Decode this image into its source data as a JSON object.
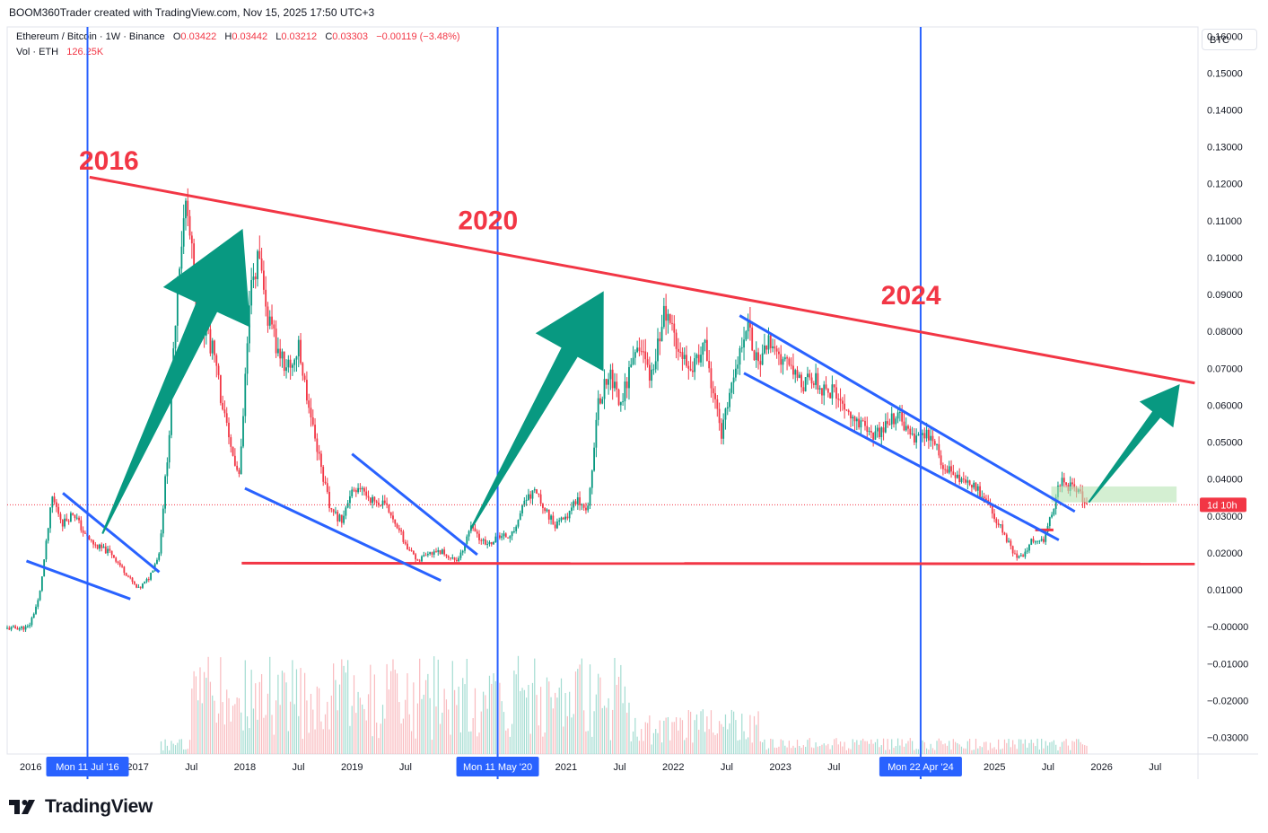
{
  "header": {
    "credit": "BOOM360Trader created with TradingView.com, Nov 15, 2025 17:50 UTC+3"
  },
  "legend": {
    "symbol": "Ethereum / Bitcoin · 1W · Binance",
    "o_label": "O",
    "o_value": "0.03422",
    "h_label": "H",
    "h_value": "0.03442",
    "l_label": "L",
    "l_value": "0.03212",
    "c_label": "C",
    "c_value": "0.03303",
    "change": "−0.00119 (−3.48%)",
    "vol_label": "Vol · ETH",
    "vol_value": "126.25K"
  },
  "currency_button": "BTC",
  "branding": "TradingView",
  "colors": {
    "up": "#089981",
    "down": "#f23645",
    "blue_line": "#2962ff",
    "red_line": "#f23645",
    "arrow": "#089981"
  },
  "chart_data": {
    "type": "candlestick",
    "title": "Ethereum / Bitcoin · 1W · Binance",
    "y_axis": {
      "unit": "BTC",
      "ticks": [
        "0.16000",
        "0.15000",
        "0.14000",
        "0.13000",
        "0.12000",
        "0.11000",
        "0.10000",
        "0.09000",
        "0.08000",
        "0.07000",
        "0.06000",
        "0.05000",
        "0.04000",
        "0.03000",
        "0.02000",
        "0.01000",
        "−0.00000",
        "−0.01000",
        "−0.02000",
        "−0.03000"
      ],
      "range": [
        -0.0345,
        0.1625
      ]
    },
    "x_axis": {
      "ticks": [
        {
          "label": "2016",
          "t": 2016.0
        },
        {
          "label": "2017",
          "t": 2017.0
        },
        {
          "label": "Jul",
          "t": 2017.5
        },
        {
          "label": "2018",
          "t": 2018.0
        },
        {
          "label": "Jul",
          "t": 2018.5
        },
        {
          "label": "2019",
          "t": 2019.0
        },
        {
          "label": "Jul",
          "t": 2019.5
        },
        {
          "label": "2021",
          "t": 2021.0
        },
        {
          "label": "Jul",
          "t": 2021.5
        },
        {
          "label": "2022",
          "t": 2022.0
        },
        {
          "label": "Jul",
          "t": 2022.5
        },
        {
          "label": "2023",
          "t": 2023.0
        },
        {
          "label": "Jul",
          "t": 2023.5
        },
        {
          "label": "2025",
          "t": 2025.0
        },
        {
          "label": "Jul",
          "t": 2025.5
        },
        {
          "label": "2026",
          "t": 2026.0
        },
        {
          "label": "Jul",
          "t": 2026.5
        }
      ],
      "range": [
        2015.78,
        2026.9
      ],
      "highlighted_dates": [
        {
          "label": "Mon 11 Jul '16",
          "t": 2016.53
        },
        {
          "label": "Mon 11 May '20",
          "t": 2020.36
        },
        {
          "label": "Mon 22 Apr '24",
          "t": 2024.31
        }
      ]
    },
    "last_price": {
      "value": 0.03303,
      "countdown": "1d 10h"
    },
    "price_path": [
      [
        2015.78,
        -0.0005
      ],
      [
        2015.98,
        -0.0002
      ],
      [
        2016.08,
        0.008
      ],
      [
        2016.2,
        0.035
      ],
      [
        2016.3,
        0.028
      ],
      [
        2016.4,
        0.031
      ],
      [
        2016.5,
        0.025
      ],
      [
        2016.6,
        0.022
      ],
      [
        2016.75,
        0.02
      ],
      [
        2016.9,
        0.014
      ],
      [
        2017.0,
        0.01
      ],
      [
        2017.1,
        0.013
      ],
      [
        2017.2,
        0.02
      ],
      [
        2017.3,
        0.055
      ],
      [
        2017.37,
        0.095
      ],
      [
        2017.45,
        0.115
      ],
      [
        2017.55,
        0.088
      ],
      [
        2017.7,
        0.075
      ],
      [
        2017.85,
        0.05
      ],
      [
        2017.95,
        0.04
      ],
      [
        2018.05,
        0.09
      ],
      [
        2018.12,
        0.1
      ],
      [
        2018.2,
        0.085
      ],
      [
        2018.3,
        0.075
      ],
      [
        2018.4,
        0.07
      ],
      [
        2018.5,
        0.075
      ],
      [
        2018.6,
        0.06
      ],
      [
        2018.7,
        0.045
      ],
      [
        2018.8,
        0.031
      ],
      [
        2018.9,
        0.029
      ],
      [
        2019.0,
        0.036
      ],
      [
        2019.1,
        0.037
      ],
      [
        2019.2,
        0.034
      ],
      [
        2019.3,
        0.033
      ],
      [
        2019.4,
        0.029
      ],
      [
        2019.5,
        0.022
      ],
      [
        2019.6,
        0.018
      ],
      [
        2019.7,
        0.019
      ],
      [
        2019.8,
        0.021
      ],
      [
        2019.9,
        0.019
      ],
      [
        2020.0,
        0.018
      ],
      [
        2020.1,
        0.027
      ],
      [
        2020.25,
        0.022
      ],
      [
        2020.35,
        0.024
      ],
      [
        2020.5,
        0.025
      ],
      [
        2020.6,
        0.033
      ],
      [
        2020.7,
        0.037
      ],
      [
        2020.8,
        0.032
      ],
      [
        2020.9,
        0.027
      ],
      [
        2021.0,
        0.03
      ],
      [
        2021.1,
        0.035
      ],
      [
        2021.2,
        0.032
      ],
      [
        2021.3,
        0.06
      ],
      [
        2021.4,
        0.07
      ],
      [
        2021.5,
        0.06
      ],
      [
        2021.6,
        0.07
      ],
      [
        2021.7,
        0.075
      ],
      [
        2021.8,
        0.067
      ],
      [
        2021.9,
        0.085
      ],
      [
        2022.0,
        0.08
      ],
      [
        2022.1,
        0.074
      ],
      [
        2022.2,
        0.071
      ],
      [
        2022.3,
        0.075
      ],
      [
        2022.4,
        0.06
      ],
      [
        2022.45,
        0.052
      ],
      [
        2022.55,
        0.065
      ],
      [
        2022.65,
        0.08
      ],
      [
        2022.7,
        0.083
      ],
      [
        2022.8,
        0.069
      ],
      [
        2022.9,
        0.078
      ],
      [
        2023.0,
        0.07
      ],
      [
        2023.1,
        0.072
      ],
      [
        2023.2,
        0.066
      ],
      [
        2023.3,
        0.068
      ],
      [
        2023.4,
        0.064
      ],
      [
        2023.5,
        0.063
      ],
      [
        2023.6,
        0.06
      ],
      [
        2023.7,
        0.055
      ],
      [
        2023.8,
        0.054
      ],
      [
        2023.9,
        0.052
      ],
      [
        2024.0,
        0.055
      ],
      [
        2024.1,
        0.057
      ],
      [
        2024.2,
        0.052
      ],
      [
        2024.3,
        0.05
      ],
      [
        2024.4,
        0.052
      ],
      [
        2024.5,
        0.045
      ],
      [
        2024.6,
        0.042
      ],
      [
        2024.7,
        0.04
      ],
      [
        2024.8,
        0.038
      ],
      [
        2024.9,
        0.035
      ],
      [
        2025.0,
        0.03
      ],
      [
        2025.1,
        0.024
      ],
      [
        2025.2,
        0.019
      ],
      [
        2025.27,
        0.019
      ],
      [
        2025.35,
        0.024
      ],
      [
        2025.45,
        0.023
      ],
      [
        2025.55,
        0.032
      ],
      [
        2025.62,
        0.04
      ],
      [
        2025.7,
        0.038
      ],
      [
        2025.8,
        0.036
      ],
      [
        2025.87,
        0.033
      ]
    ],
    "annotations": {
      "labels": [
        {
          "text": "2016",
          "t": 2016.45,
          "y": 0.1238
        },
        {
          "text": "2020",
          "t": 2019.99,
          "y": 0.1076
        },
        {
          "text": "2024",
          "t": 2023.94,
          "y": 0.0874
        }
      ],
      "red_lines": [
        {
          "t1": 2016.55,
          "y1": 0.1218,
          "t2": 2026.87,
          "y2": 0.066
        },
        {
          "t1": 2017.97,
          "y1": 0.0172,
          "t2": 2026.87,
          "y2": 0.017
        },
        {
          "t1": 2025.38,
          "y1": 0.0262,
          "t2": 2025.55,
          "y2": 0.0262
        }
      ],
      "blue_lines": [
        {
          "t1": 2015.96,
          "y1": 0.0178,
          "t2": 2016.93,
          "y2": 0.0075
        },
        {
          "t1": 2016.3,
          "y1": 0.0362,
          "t2": 2017.2,
          "y2": 0.0148
        },
        {
          "t1": 2018.0,
          "y1": 0.0375,
          "t2": 2019.83,
          "y2": 0.0125
        },
        {
          "t1": 2019.0,
          "y1": 0.0468,
          "t2": 2020.17,
          "y2": 0.0195
        },
        {
          "t1": 2022.62,
          "y1": 0.0843,
          "t2": 2025.75,
          "y2": 0.0312
        },
        {
          "t1": 2022.66,
          "y1": 0.0687,
          "t2": 2025.6,
          "y2": 0.0235
        }
      ],
      "blue_vertical": [
        2016.53,
        2020.36,
        2024.31
      ],
      "arrows": [
        {
          "t1": 2016.67,
          "y1": 0.0252,
          "t2": 2017.98,
          "y2": 0.1078
        },
        {
          "t1": 2020.11,
          "y1": 0.0265,
          "t2": 2021.35,
          "y2": 0.0909
        },
        {
          "t1": 2025.88,
          "y1": 0.0337,
          "t2": 2026.73,
          "y2": 0.0657
        }
      ],
      "zone": {
        "t1": 2025.53,
        "t2": 2026.7,
        "y1": 0.0337,
        "y2": 0.038
      }
    }
  }
}
